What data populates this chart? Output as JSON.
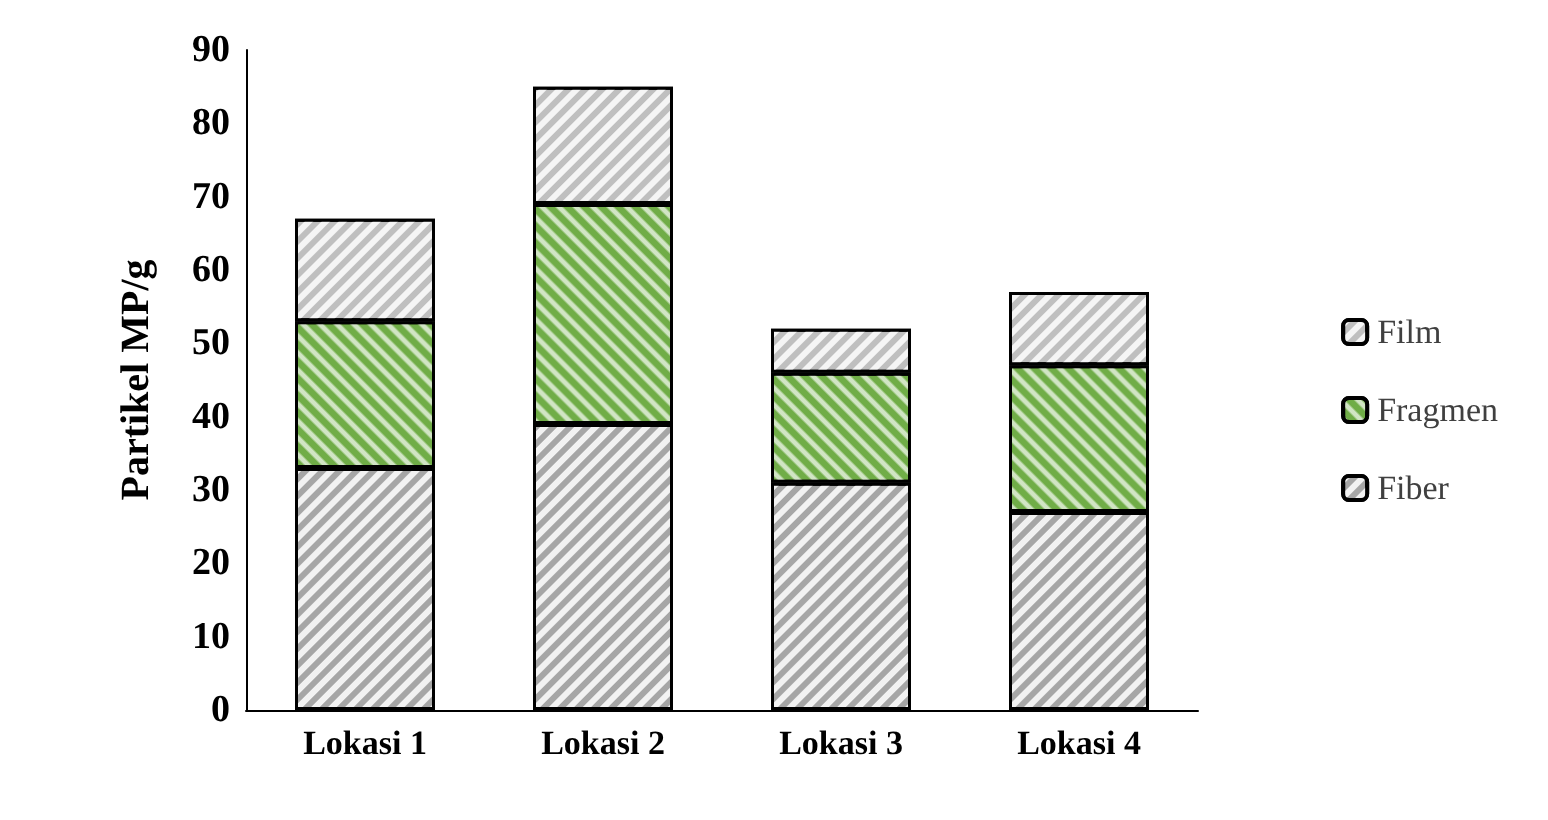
{
  "chart_data": {
    "type": "bar",
    "stacked": true,
    "ylabel": "Partikel MP/g",
    "categories": [
      "Lokasi 1",
      "Lokasi 2",
      "Lokasi 3",
      "Lokasi 4"
    ],
    "series": [
      {
        "name": "Fiber",
        "color": "#a6a6a6",
        "values": [
          33,
          39,
          31,
          27
        ]
      },
      {
        "name": "Fragmen",
        "color": "#70ad47",
        "values": [
          20,
          30,
          15,
          20
        ]
      },
      {
        "name": "Film",
        "color": "#bfbfbf",
        "values": [
          14,
          16,
          6,
          10
        ]
      }
    ],
    "ylim": [
      0,
      90
    ],
    "yticks": [
      0,
      10,
      20,
      30,
      40,
      50,
      60,
      70,
      80,
      90
    ],
    "grid": false,
    "legend": "right"
  }
}
